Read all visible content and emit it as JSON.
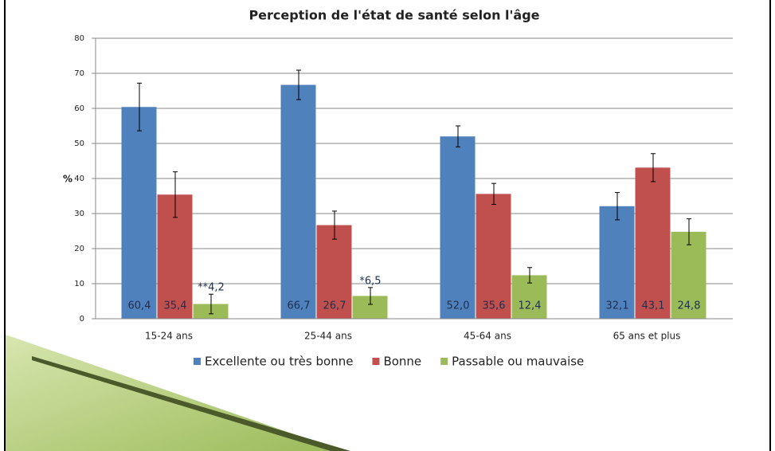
{
  "chart_data": {
    "type": "bar",
    "title": "Perception de l'état de santé selon l'âge",
    "y_label": "%",
    "categories": [
      "15-24 ans",
      "25-44 ans",
      "45-64 ans",
      "65 ans et plus"
    ],
    "series": [
      {
        "name": "Excellente ou très bonne",
        "color": "#4f81bd",
        "values": [
          60.4,
          66.7,
          52.0,
          32.1
        ],
        "value_labels": [
          "60,4",
          "66,7",
          "52,0",
          "32,1"
        ],
        "errors": [
          6.8,
          4.2,
          3.0,
          3.9
        ]
      },
      {
        "name": "Bonne",
        "color": "#c0504d",
        "values": [
          35.4,
          26.7,
          35.6,
          43.1
        ],
        "value_labels": [
          "35,4",
          "26,7",
          "35,6",
          "43,1"
        ],
        "errors": [
          6.5,
          4.0,
          3.0,
          4.0
        ]
      },
      {
        "name": "Passable ou mauvaise",
        "color": "#9bbb59",
        "values": [
          4.2,
          6.5,
          12.4,
          24.8
        ],
        "value_labels": [
          "**4,2",
          "*6,5",
          "12,4",
          "24,8"
        ],
        "errors": [
          2.8,
          2.4,
          2.2,
          3.7
        ]
      }
    ],
    "ylim": [
      0,
      80
    ],
    "yticks": [
      0,
      10,
      20,
      30,
      40,
      50,
      60,
      70,
      80
    ],
    "grid": true,
    "legend": "bottom"
  }
}
